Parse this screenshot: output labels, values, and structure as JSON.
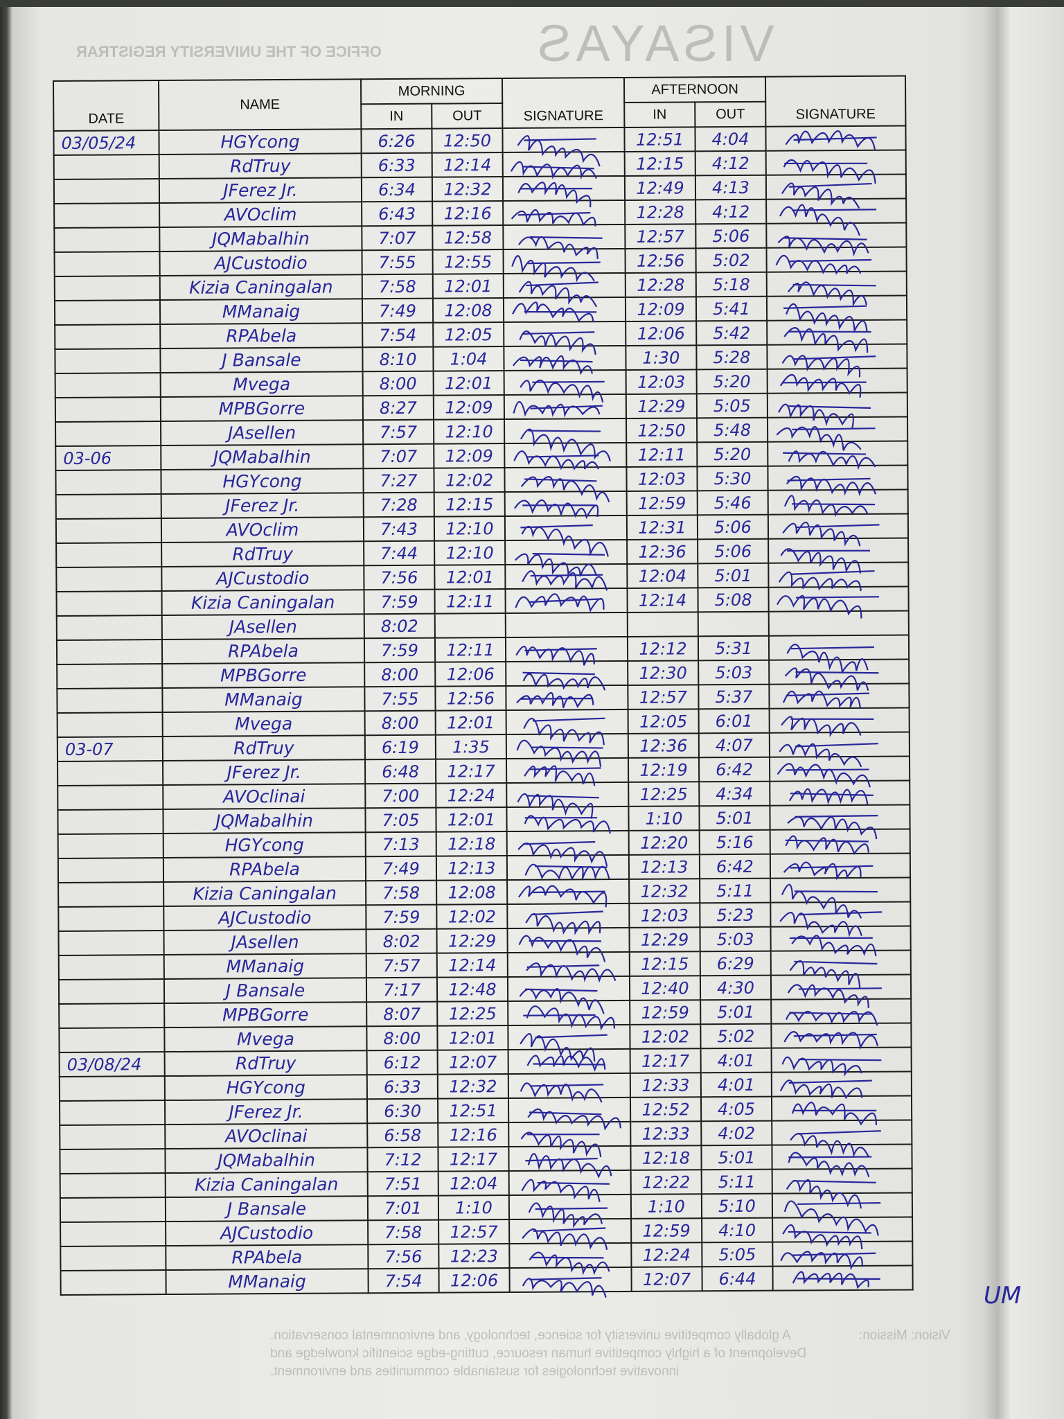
{
  "bleed_through": {
    "registrar": "OFFICE OF THE UNIVERSITY REGISTRAR",
    "university": "VISAYAS",
    "vision_label": "Vision: Mission:",
    "vision_text": "A globally competitive university for science, technology, and environmental conservation. Development of a highly competitive human resource, cutting-edge scientific knowledge and innovative technologies for sustainable communities and environment."
  },
  "header": {
    "date": "DATE",
    "name": "NAME",
    "morning": "MORNING",
    "afternoon": "AFTERNOON",
    "in": "IN",
    "out": "OUT",
    "signature": "SIGNATURE"
  },
  "ink_color": "#27279a",
  "rows": [
    {
      "date": "03/05/24",
      "name": "HGYcong",
      "am_in": "6:26",
      "am_out": "12:50",
      "pm_in": "12:51",
      "pm_out": "4:04"
    },
    {
      "date": "",
      "name": "RdTruy",
      "am_in": "6:33",
      "am_out": "12:14",
      "pm_in": "12:15",
      "pm_out": "4:12"
    },
    {
      "date": "",
      "name": "JFerez Jr.",
      "am_in": "6:34",
      "am_out": "12:32",
      "pm_in": "12:49",
      "pm_out": "4:13"
    },
    {
      "date": "",
      "name": "AVOclim",
      "am_in": "6:43",
      "am_out": "12:16",
      "pm_in": "12:28",
      "pm_out": "4:12"
    },
    {
      "date": "",
      "name": "JQMabalhin",
      "am_in": "7:07",
      "am_out": "12:58",
      "pm_in": "12:57",
      "pm_out": "5:06"
    },
    {
      "date": "",
      "name": "AJCustodio",
      "am_in": "7:55",
      "am_out": "12:55",
      "pm_in": "12:56",
      "pm_out": "5:02"
    },
    {
      "date": "",
      "name": "Kizia Caningalan",
      "am_in": "7:58",
      "am_out": "12:01",
      "pm_in": "12:28",
      "pm_out": "5:18"
    },
    {
      "date": "",
      "name": "MManaig",
      "am_in": "7:49",
      "am_out": "12:08",
      "pm_in": "12:09",
      "pm_out": "5:41"
    },
    {
      "date": "",
      "name": "RPAbela",
      "am_in": "7:54",
      "am_out": "12:05",
      "pm_in": "12:06",
      "pm_out": "5:42"
    },
    {
      "date": "",
      "name": "J Bansale",
      "am_in": "8:10",
      "am_out": "1:04",
      "pm_in": "1:30",
      "pm_out": "5:28"
    },
    {
      "date": "",
      "name": "Mvega",
      "am_in": "8:00",
      "am_out": "12:01",
      "pm_in": "12:03",
      "pm_out": "5:20"
    },
    {
      "date": "",
      "name": "MPBGorre",
      "am_in": "8:27",
      "am_out": "12:09",
      "pm_in": "12:29",
      "pm_out": "5:05"
    },
    {
      "date": "",
      "name": "JAsellen",
      "am_in": "7:57",
      "am_out": "12:10",
      "pm_in": "12:50",
      "pm_out": "5:48"
    },
    {
      "date": "03-06",
      "name": "JQMabalhin",
      "am_in": "7:07",
      "am_out": "12:09",
      "pm_in": "12:11",
      "pm_out": "5:20"
    },
    {
      "date": "",
      "name": "HGYcong",
      "am_in": "7:27",
      "am_out": "12:02",
      "pm_in": "12:03",
      "pm_out": "5:30"
    },
    {
      "date": "",
      "name": "JFerez Jr.",
      "am_in": "7:28",
      "am_out": "12:15",
      "pm_in": "12:59",
      "pm_out": "5:46"
    },
    {
      "date": "",
      "name": "AVOclim",
      "am_in": "7:43",
      "am_out": "12:10",
      "pm_in": "12:31",
      "pm_out": "5:06"
    },
    {
      "date": "",
      "name": "RdTruy",
      "am_in": "7:44",
      "am_out": "12:10",
      "pm_in": "12:36",
      "pm_out": "5:06"
    },
    {
      "date": "",
      "name": "AJCustodio",
      "am_in": "7:56",
      "am_out": "12:01",
      "pm_in": "12:04",
      "pm_out": "5:01"
    },
    {
      "date": "",
      "name": "Kizia Caningalan",
      "am_in": "7:59",
      "am_out": "12:11",
      "pm_in": "12:14",
      "pm_out": "5:08"
    },
    {
      "date": "",
      "name": "JAsellen",
      "am_in": "8:02",
      "am_out": "",
      "pm_in": "",
      "pm_out": ""
    },
    {
      "date": "",
      "name": "RPAbela",
      "am_in": "7:59",
      "am_out": "12:11",
      "pm_in": "12:12",
      "pm_out": "5:31"
    },
    {
      "date": "",
      "name": "MPBGorre",
      "am_in": "8:00",
      "am_out": "12:06",
      "pm_in": "12:30",
      "pm_out": "5:03"
    },
    {
      "date": "",
      "name": "MManaig",
      "am_in": "7:55",
      "am_out": "12:56",
      "pm_in": "12:57",
      "pm_out": "5:37"
    },
    {
      "date": "",
      "name": "Mvega",
      "am_in": "8:00",
      "am_out": "12:01",
      "pm_in": "12:05",
      "pm_out": "6:01"
    },
    {
      "date": "03-07",
      "name": "RdTruy",
      "am_in": "6:19",
      "am_out": "1:35",
      "pm_in": "12:36",
      "pm_out": "4:07"
    },
    {
      "date": "",
      "name": "JFerez Jr.",
      "am_in": "6:48",
      "am_out": "12:17",
      "pm_in": "12:19",
      "pm_out": "6:42"
    },
    {
      "date": "",
      "name": "AVOclinai",
      "am_in": "7:00",
      "am_out": "12:24",
      "pm_in": "12:25",
      "pm_out": "4:34"
    },
    {
      "date": "",
      "name": "JQMabalhin",
      "am_in": "7:05",
      "am_out": "12:01",
      "pm_in": "1:10",
      "pm_out": "5:01"
    },
    {
      "date": "",
      "name": "HGYcong",
      "am_in": "7:13",
      "am_out": "12:18",
      "pm_in": "12:20",
      "pm_out": "5:16"
    },
    {
      "date": "",
      "name": "RPAbela",
      "am_in": "7:49",
      "am_out": "12:13",
      "pm_in": "12:13",
      "pm_out": "6:42"
    },
    {
      "date": "",
      "name": "Kizia Caningalan",
      "am_in": "7:58",
      "am_out": "12:08",
      "pm_in": "12:32",
      "pm_out": "5:11"
    },
    {
      "date": "",
      "name": "AJCustodio",
      "am_in": "7:59",
      "am_out": "12:02",
      "pm_in": "12:03",
      "pm_out": "5:23"
    },
    {
      "date": "",
      "name": "JAsellen",
      "am_in": "8:02",
      "am_out": "12:29",
      "pm_in": "12:29",
      "pm_out": "5:03"
    },
    {
      "date": "",
      "name": "MManaig",
      "am_in": "7:57",
      "am_out": "12:14",
      "pm_in": "12:15",
      "pm_out": "6:29"
    },
    {
      "date": "",
      "name": "J Bansale",
      "am_in": "7:17",
      "am_out": "12:48",
      "pm_in": "12:40",
      "pm_out": "4:30"
    },
    {
      "date": "",
      "name": "MPBGorre",
      "am_in": "8:07",
      "am_out": "12:25",
      "pm_in": "12:59",
      "pm_out": "5:01"
    },
    {
      "date": "",
      "name": "Mvega",
      "am_in": "8:00",
      "am_out": "12:01",
      "pm_in": "12:02",
      "pm_out": "5:02"
    },
    {
      "date": "03/08/24",
      "name": "RdTruy",
      "am_in": "6:12",
      "am_out": "12:07",
      "pm_in": "12:17",
      "pm_out": "4:01"
    },
    {
      "date": "",
      "name": "HGYcong",
      "am_in": "6:33",
      "am_out": "12:32",
      "pm_in": "12:33",
      "pm_out": "4:01"
    },
    {
      "date": "",
      "name": "JFerez Jr.",
      "am_in": "6:30",
      "am_out": "12:51",
      "pm_in": "12:52",
      "pm_out": "4:05"
    },
    {
      "date": "",
      "name": "AVOclinai",
      "am_in": "6:58",
      "am_out": "12:16",
      "pm_in": "12:33",
      "pm_out": "4:02"
    },
    {
      "date": "",
      "name": "JQMabalhin",
      "am_in": "7:12",
      "am_out": "12:17",
      "pm_in": "12:18",
      "pm_out": "5:01"
    },
    {
      "date": "",
      "name": "Kizia Caningalan",
      "am_in": "7:51",
      "am_out": "12:04",
      "pm_in": "12:22",
      "pm_out": "5:11"
    },
    {
      "date": "",
      "name": "J Bansale",
      "am_in": "7:01",
      "am_out": "1:10",
      "pm_in": "1:10",
      "pm_out": "5:10"
    },
    {
      "date": "",
      "name": "AJCustodio",
      "am_in": "7:58",
      "am_out": "12:57",
      "pm_in": "12:59",
      "pm_out": "4:10"
    },
    {
      "date": "",
      "name": "RPAbela",
      "am_in": "7:56",
      "am_out": "12:23",
      "pm_in": "12:24",
      "pm_out": "5:05"
    },
    {
      "date": "",
      "name": "MManaig",
      "am_in": "7:54",
      "am_out": "12:06",
      "pm_in": "12:07",
      "pm_out": "6:44"
    }
  ],
  "margin_note": "UM"
}
